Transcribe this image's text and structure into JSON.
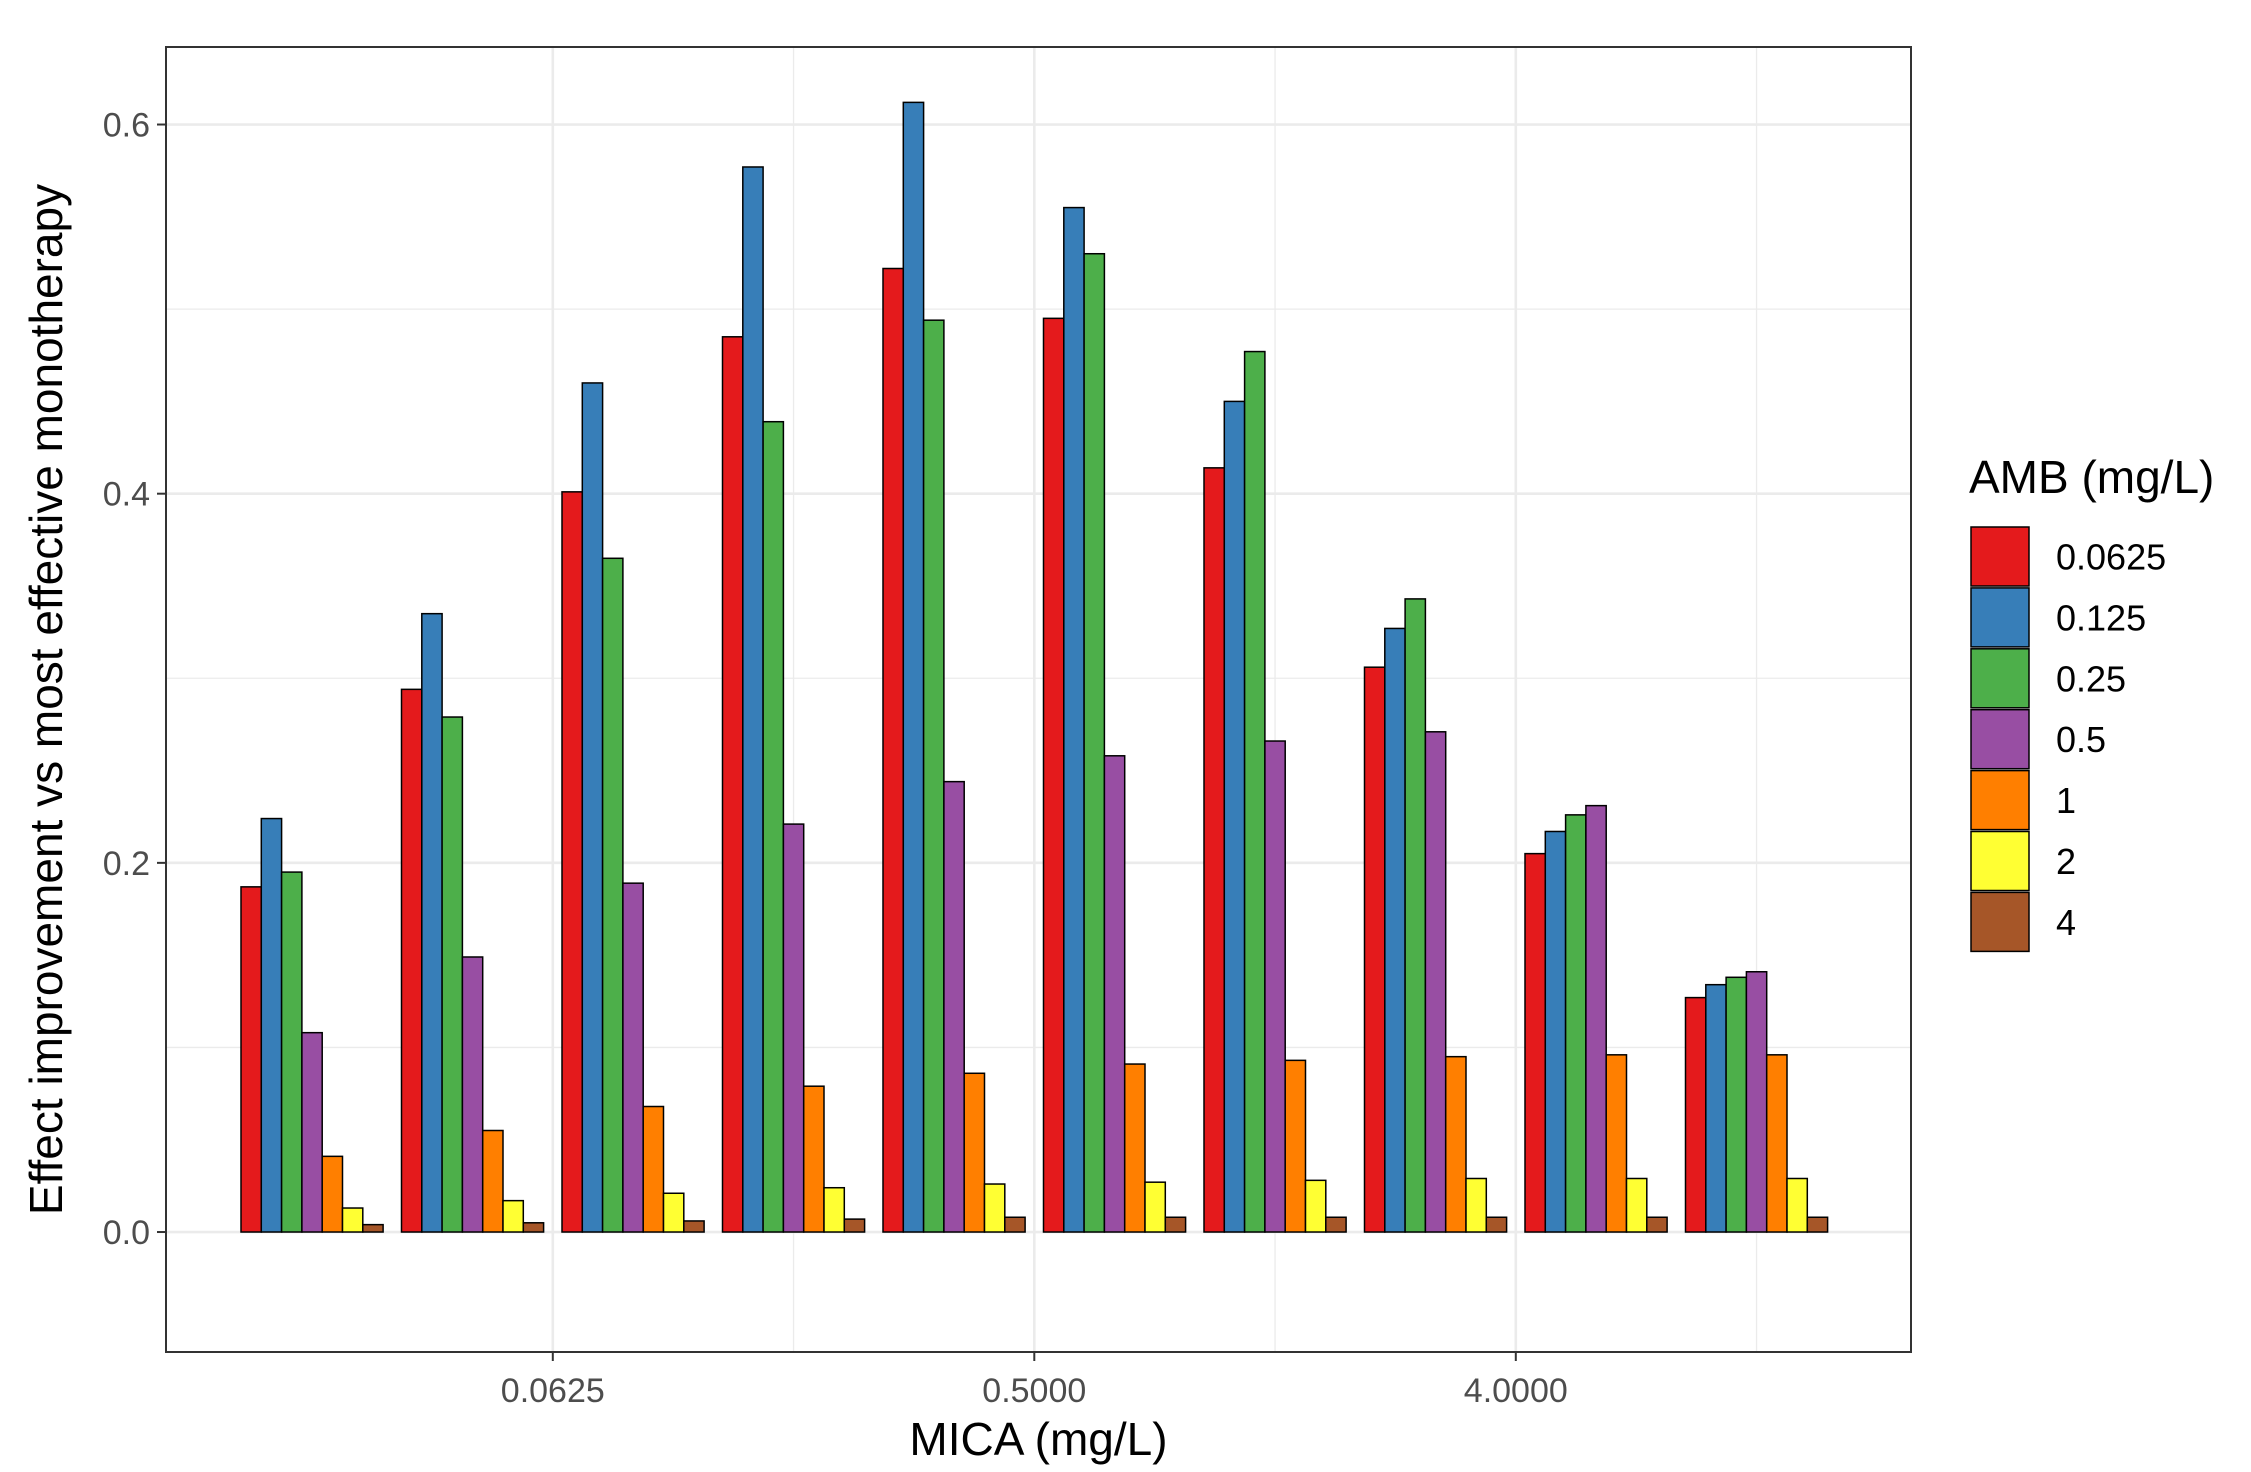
{
  "chart_data": {
    "type": "bar",
    "xlabel": "MICA (mg/L)",
    "ylabel": "Effect improvement vs most effective monotherapy",
    "ylim": [
      -0.065,
      0.642
    ],
    "y_ticks": [
      0.0,
      0.2,
      0.4,
      0.6
    ],
    "y_tick_labels": [
      "0.0",
      "0.2",
      "0.4",
      "0.6"
    ],
    "x_tick_labels": [
      {
        "group_index": 1.5,
        "label": "0.0625"
      },
      {
        "group_index": 4.5,
        "label": "0.5000"
      },
      {
        "group_index": 7.5,
        "label": "4.0000"
      }
    ],
    "group_count": 10,
    "grid": true,
    "legend": {
      "title": "AMB (mg/L)",
      "position": "right"
    },
    "series": [
      {
        "name": "0.0625",
        "color": "#E41A1C",
        "values": [
          0.187,
          0.294,
          0.401,
          0.485,
          0.522,
          0.495,
          0.414,
          0.306,
          0.205,
          0.127
        ]
      },
      {
        "name": "0.125",
        "color": "#377EB8",
        "values": [
          0.224,
          0.335,
          0.46,
          0.577,
          0.612,
          0.555,
          0.45,
          0.327,
          0.217,
          0.134
        ]
      },
      {
        "name": "0.25",
        "color": "#4DAF4A",
        "values": [
          0.195,
          0.279,
          0.365,
          0.439,
          0.494,
          0.53,
          0.477,
          0.343,
          0.226,
          0.138
        ]
      },
      {
        "name": "0.5",
        "color": "#984EA3",
        "values": [
          0.108,
          0.149,
          0.189,
          0.221,
          0.244,
          0.258,
          0.266,
          0.271,
          0.231,
          0.141
        ]
      },
      {
        "name": "1",
        "color": "#FF7F00",
        "values": [
          0.041,
          0.055,
          0.068,
          0.079,
          0.086,
          0.091,
          0.093,
          0.095,
          0.096,
          0.096
        ]
      },
      {
        "name": "2",
        "color": "#FFFF33",
        "values": [
          0.013,
          0.017,
          0.021,
          0.024,
          0.026,
          0.027,
          0.028,
          0.029,
          0.029,
          0.029
        ]
      },
      {
        "name": "4",
        "color": "#A65628",
        "values": [
          0.004,
          0.005,
          0.006,
          0.007,
          0.008,
          0.008,
          0.008,
          0.008,
          0.008,
          0.008
        ]
      }
    ]
  }
}
